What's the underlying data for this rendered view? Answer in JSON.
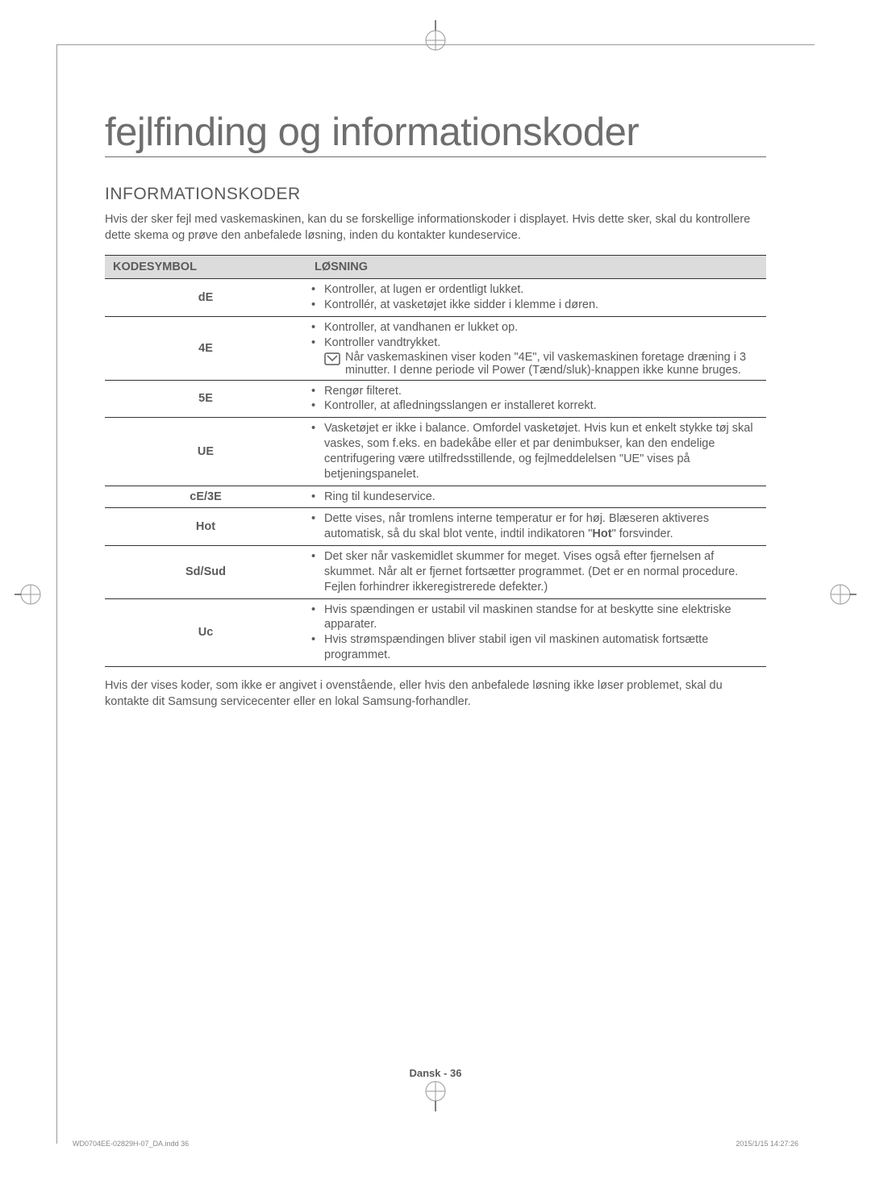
{
  "title": "fejlfinding og informationskoder",
  "section_heading": "INFORMATIONSKODER",
  "intro": "Hvis der sker fejl med vaskemaskinen, kan du se forskellige informationskoder i displayet. Hvis dette sker, skal du kontrollere dette skema og prøve den anbefalede løsning, inden du kontakter kundeservice.",
  "table": {
    "headers": [
      "KODESYMBOL",
      "LØSNING"
    ],
    "rows": [
      {
        "code": "dE",
        "items": [
          "Kontroller, at lugen er ordentligt lukket.",
          "Kontrollér, at vasketøjet ikke sidder i klemme i døren."
        ]
      },
      {
        "code": "4E",
        "items": [
          "Kontroller, at vandhanen er lukket op.",
          "Kontroller vandtrykket."
        ],
        "icon_text": "Når vaskemaskinen viser koden \"4E\", vil vaskemaskinen foretage dræning i 3 minutter. I denne periode vil Power (Tænd/sluk)-knappen ikke kunne bruges."
      },
      {
        "code": "5E",
        "items": [
          "Rengør filteret.",
          "Kontroller, at afledningsslangen er installeret korrekt."
        ]
      },
      {
        "code": "UE",
        "items": [
          "Vasketøjet er ikke i balance. Omfordel vasketøjet. Hvis kun et enkelt stykke tøj skal vaskes, som f.eks. en badekåbe eller et par denimbukser, kan den endelige centrifugering være utilfredsstillende, og fejlmeddelelsen \"UE\" vises på betjeningspanelet."
        ]
      },
      {
        "code": "cE/3E",
        "items": [
          "Ring til kundeservice."
        ]
      },
      {
        "code": "Hot",
        "items": [
          "Dette vises, når tromlens interne temperatur er for høj. Blæseren aktiveres automatisk, så du skal blot vente, indtil indikatoren \"Hot\" forsvinder."
        ],
        "bold_word": "Hot"
      },
      {
        "code": "Sd/Sud",
        "items": [
          "Det sker når vaskemidlet skummer for meget. Vises også efter fjernelsen af skummet. Når alt er fjernet fortsætter programmet. (Det er en normal procedure. Fejlen forhindrer ikkeregistrerede defekter.)"
        ]
      },
      {
        "code": "Uc",
        "items": [
          "Hvis spændingen er ustabil vil maskinen standse for at beskytte sine elektriske apparater.",
          "Hvis strømspændingen bliver stabil igen vil maskinen automatisk fortsætte programmet."
        ]
      }
    ]
  },
  "outro": "Hvis der vises koder, som ikke er angivet i ovenstående, eller hvis den anbefalede løsning ikke løser problemet, skal du kontakte dit Samsung servicecenter eller en lokal Samsung-forhandler.",
  "footer_page": "Dansk - 36",
  "footer_left": "WD0704EE-02829H-07_DA.indd   36",
  "footer_right": "2015/1/15   14:27:26",
  "colors": {
    "text": "#5a5a5a",
    "title": "#6e6e6e",
    "header_bg": "#dcdcdc",
    "border": "#333333"
  }
}
